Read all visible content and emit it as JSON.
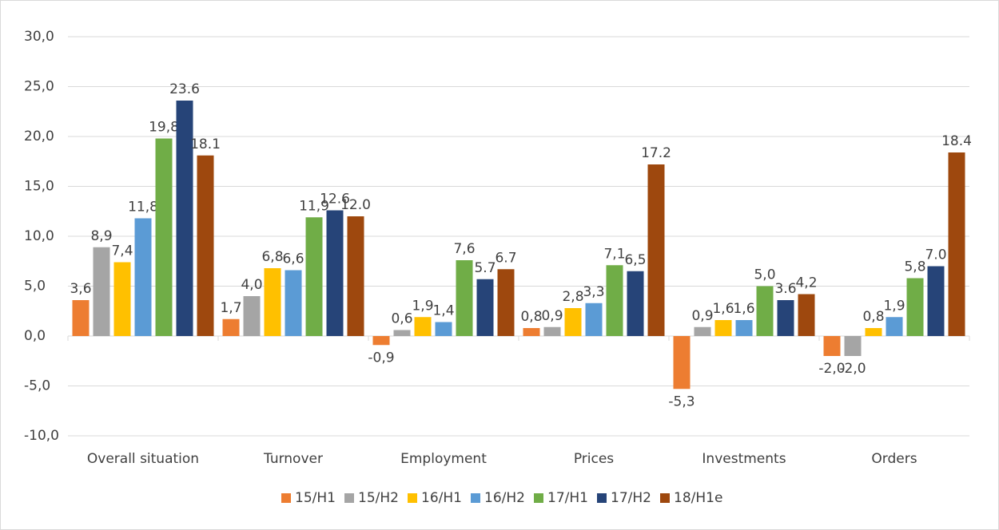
{
  "chart_data": {
    "type": "bar",
    "categories": [
      "Overall situation",
      "Turnover",
      "Employment",
      "Prices",
      "Investments",
      "Orders"
    ],
    "series": [
      {
        "name": "15/H1",
        "color": "#ed7d31",
        "values": [
          3.6,
          1.7,
          -0.9,
          0.8,
          -5.3,
          -2.0
        ],
        "value_labels": [
          "3,6",
          "1,7",
          "-0,9",
          "0,8",
          "-5,3",
          "-2,0"
        ]
      },
      {
        "name": "15/H2",
        "color": "#a5a5a5",
        "values": [
          8.9,
          4.0,
          0.6,
          0.9,
          0.9,
          -2.0
        ],
        "value_labels": [
          "8,9",
          "4,0",
          "0,6",
          "0,9",
          "0,9",
          "-2,0"
        ]
      },
      {
        "name": "16/H1",
        "color": "#ffc000",
        "values": [
          7.4,
          6.8,
          1.9,
          2.8,
          1.6,
          0.8
        ],
        "value_labels": [
          "7,4",
          "6,8",
          "1,9",
          "2,8",
          "1,6",
          "0,8"
        ]
      },
      {
        "name": "16/H2",
        "color": "#5b9bd5",
        "values": [
          11.8,
          6.6,
          1.4,
          3.3,
          1.6,
          1.9
        ],
        "value_labels": [
          "11,8",
          "6,6",
          "1,4",
          "3,3",
          "1,6",
          "1,9"
        ]
      },
      {
        "name": "17/H1",
        "color": "#70ad47",
        "values": [
          19.8,
          11.9,
          7.6,
          7.1,
          5.0,
          5.8
        ],
        "value_labels": [
          "19,8",
          "11,9",
          "7,6",
          "7,1",
          "5,0",
          "5,8"
        ]
      },
      {
        "name": "17/H2",
        "color": "#264478",
        "values": [
          23.6,
          12.6,
          5.7,
          6.5,
          3.6,
          7.0
        ],
        "value_labels": [
          "23.6",
          "12.6",
          "5.7",
          "6,5",
          "3.6",
          "7.0"
        ]
      },
      {
        "name": "18/H1e",
        "color": "#9e480e",
        "values": [
          18.1,
          12.0,
          6.7,
          17.2,
          4.2,
          18.4
        ],
        "value_labels": [
          "18.1",
          "12.0",
          "6.7",
          "17.2",
          "4,2",
          "18.4"
        ]
      }
    ],
    "ylim": [
      -10,
      30
    ],
    "yticks": [
      {
        "value": -10,
        "label": "-10,0"
      },
      {
        "value": -5,
        "label": "-5,0"
      },
      {
        "value": 0,
        "label": "0,0"
      },
      {
        "value": 5,
        "label": "5,0"
      },
      {
        "value": 10,
        "label": "10,0"
      },
      {
        "value": 15,
        "label": "15,0"
      },
      {
        "value": 20,
        "label": "20,0"
      },
      {
        "value": 25,
        "label": "25,0"
      },
      {
        "value": 30,
        "label": "30,0"
      }
    ],
    "grid": true,
    "legend": "bottom"
  }
}
